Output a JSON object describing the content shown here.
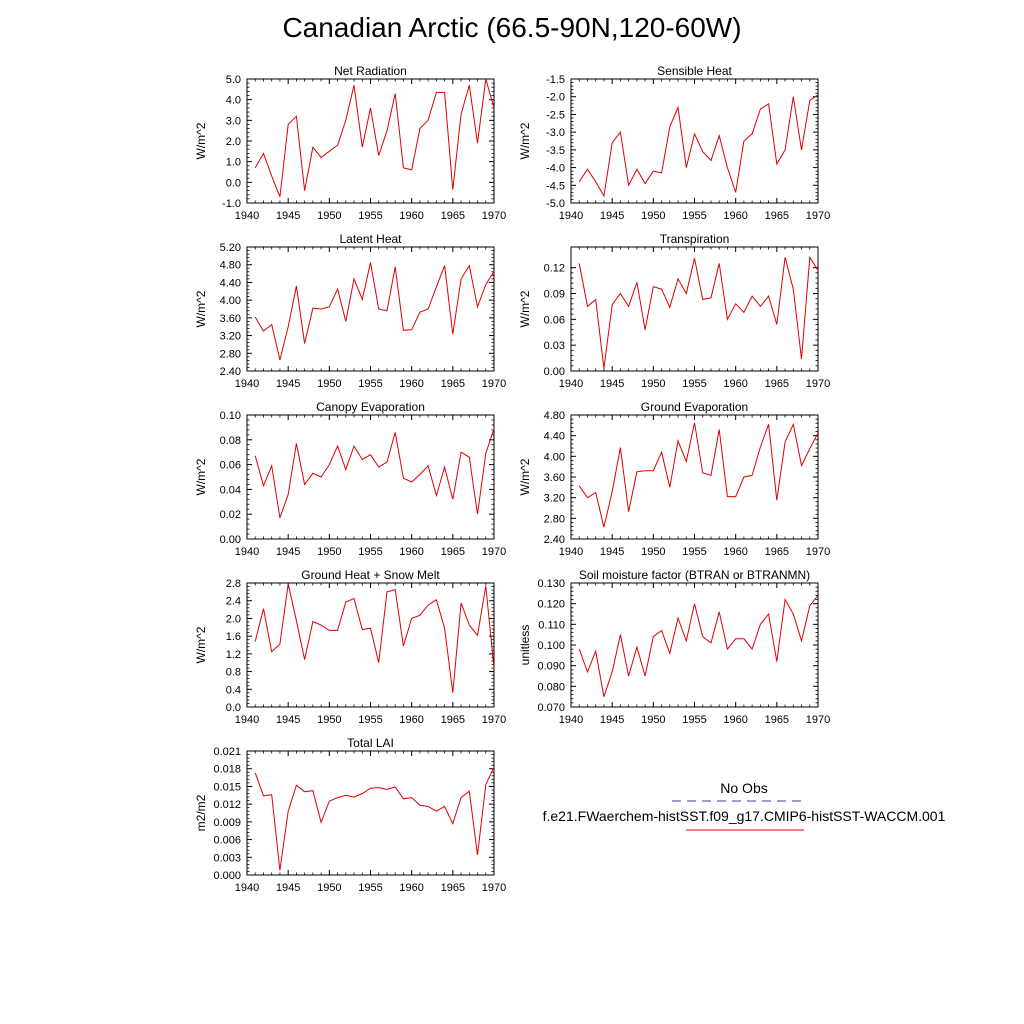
{
  "title": "Canadian Arctic (66.5-90N,120-60W)",
  "legend": {
    "obs_label": "No Obs",
    "obs_color": "#3b3b9a",
    "case_label": "f.e21.FWaerchem-histSST.f09_g17.CMIP6-histSST-WACCM.001",
    "case_color": "#e00000"
  },
  "chart_data": [
    {
      "type": "line",
      "title": "Net Radiation",
      "ylabel": "W/m^2",
      "xlim": [
        1940,
        1970
      ],
      "xticks": [
        1940,
        1945,
        1950,
        1955,
        1960,
        1965,
        1970
      ],
      "ylim": [
        -1.0,
        5.0
      ],
      "yticks": [
        "-1.0",
        "0.0",
        "1.0",
        "2.0",
        "3.0",
        "4.0",
        "5.0"
      ],
      "series": [
        {
          "color": "#e00000",
          "x": [
            1941,
            1942,
            1943,
            1944,
            1945,
            1946,
            1947,
            1948,
            1949,
            1950,
            1951,
            1952,
            1953,
            1954,
            1955,
            1956,
            1957,
            1958,
            1959,
            1960,
            1961,
            1962,
            1963,
            1964,
            1965,
            1966,
            1967,
            1968,
            1969,
            1970
          ],
          "y": [
            0.7,
            1.4,
            0.3,
            -0.7,
            2.8,
            3.2,
            -0.4,
            1.7,
            1.2,
            1.5,
            1.8,
            3.0,
            4.7,
            1.7,
            3.6,
            1.3,
            2.5,
            4.3,
            0.7,
            0.6,
            2.6,
            3.0,
            4.35,
            4.35,
            -0.35,
            3.3,
            4.7,
            1.9,
            5.0,
            3.6
          ]
        }
      ]
    },
    {
      "type": "line",
      "title": "Sensible Heat",
      "ylabel": "W/m^2",
      "xlim": [
        1940,
        1970
      ],
      "xticks": [
        1940,
        1945,
        1950,
        1955,
        1960,
        1965,
        1970
      ],
      "ylim": [
        -5.0,
        -1.5
      ],
      "yticks": [
        "-5.0",
        "-4.5",
        "-4.0",
        "-3.5",
        "-3.0",
        "-2.5",
        "-2.0",
        "-1.5"
      ],
      "series": [
        {
          "color": "#e00000",
          "x": [
            1941,
            1942,
            1943,
            1944,
            1945,
            1946,
            1947,
            1948,
            1949,
            1950,
            1951,
            1952,
            1953,
            1954,
            1955,
            1956,
            1957,
            1958,
            1959,
            1960,
            1961,
            1962,
            1963,
            1964,
            1965,
            1966,
            1967,
            1968,
            1969,
            1970
          ],
          "y": [
            -4.4,
            -4.05,
            -4.4,
            -4.8,
            -3.3,
            -3.0,
            -4.5,
            -4.05,
            -4.45,
            -4.1,
            -4.15,
            -2.85,
            -2.3,
            -4.0,
            -3.05,
            -3.55,
            -3.8,
            -3.1,
            -4.0,
            -4.7,
            -3.25,
            -3.05,
            -2.35,
            -2.2,
            -3.9,
            -3.5,
            -2.0,
            -3.5,
            -2.1,
            -1.95
          ]
        }
      ]
    },
    {
      "type": "line",
      "title": "Latent Heat",
      "ylabel": "W/m^2",
      "xlim": [
        1940,
        1970
      ],
      "xticks": [
        1940,
        1945,
        1950,
        1955,
        1960,
        1965,
        1970
      ],
      "ylim": [
        2.4,
        5.2
      ],
      "yticks": [
        "2.40",
        "2.80",
        "3.20",
        "3.60",
        "4.00",
        "4.40",
        "4.80",
        "5.20"
      ],
      "series": [
        {
          "color": "#e00000",
          "x": [
            1941,
            1942,
            1943,
            1944,
            1945,
            1946,
            1947,
            1948,
            1949,
            1950,
            1951,
            1952,
            1953,
            1954,
            1955,
            1956,
            1957,
            1958,
            1959,
            1960,
            1961,
            1962,
            1963,
            1964,
            1965,
            1966,
            1967,
            1968,
            1969,
            1970
          ],
          "y": [
            3.62,
            3.3,
            3.45,
            2.65,
            3.4,
            4.32,
            3.02,
            3.82,
            3.8,
            3.85,
            4.25,
            3.52,
            4.48,
            4.02,
            4.85,
            3.8,
            3.76,
            4.75,
            3.32,
            3.33,
            3.73,
            3.8,
            4.3,
            4.78,
            3.23,
            4.48,
            4.78,
            3.85,
            4.35,
            4.65
          ]
        }
      ]
    },
    {
      "type": "line",
      "title": "Transpiration",
      "ylabel": "W/m^2",
      "xlim": [
        1940,
        1970
      ],
      "xticks": [
        1940,
        1945,
        1950,
        1955,
        1960,
        1965,
        1970
      ],
      "ylim": [
        0.0,
        0.144
      ],
      "yticks": [
        "0.00",
        "0.03",
        "0.06",
        "0.09",
        "0.12"
      ],
      "ytick_values": [
        0.0,
        0.03,
        0.06,
        0.09,
        0.12
      ],
      "series": [
        {
          "color": "#e00000",
          "x": [
            1941,
            1942,
            1943,
            1944,
            1945,
            1946,
            1947,
            1948,
            1949,
            1950,
            1951,
            1952,
            1953,
            1954,
            1955,
            1956,
            1957,
            1958,
            1959,
            1960,
            1961,
            1962,
            1963,
            1964,
            1965,
            1966,
            1967,
            1968,
            1969,
            1970
          ],
          "y": [
            0.125,
            0.075,
            0.083,
            0.003,
            0.077,
            0.09,
            0.075,
            0.103,
            0.048,
            0.098,
            0.095,
            0.074,
            0.107,
            0.09,
            0.131,
            0.083,
            0.085,
            0.125,
            0.06,
            0.078,
            0.068,
            0.087,
            0.075,
            0.087,
            0.054,
            0.132,
            0.095,
            0.014,
            0.132,
            0.117
          ]
        }
      ]
    },
    {
      "type": "line",
      "title": "Canopy Evaporation",
      "ylabel": "W/m^2",
      "xlim": [
        1940,
        1970
      ],
      "xticks": [
        1940,
        1945,
        1950,
        1955,
        1960,
        1965,
        1970
      ],
      "ylim": [
        0.0,
        0.1
      ],
      "yticks": [
        "0.00",
        "0.02",
        "0.04",
        "0.06",
        "0.08",
        "0.10"
      ],
      "series": [
        {
          "color": "#e00000",
          "x": [
            1941,
            1942,
            1943,
            1944,
            1945,
            1946,
            1947,
            1948,
            1949,
            1950,
            1951,
            1952,
            1953,
            1954,
            1955,
            1956,
            1957,
            1958,
            1959,
            1960,
            1961,
            1962,
            1963,
            1964,
            1965,
            1966,
            1967,
            1968,
            1969,
            1970
          ],
          "y": [
            0.067,
            0.043,
            0.059,
            0.017,
            0.036,
            0.077,
            0.044,
            0.053,
            0.05,
            0.06,
            0.075,
            0.056,
            0.075,
            0.064,
            0.068,
            0.058,
            0.062,
            0.086,
            0.049,
            0.046,
            0.052,
            0.059,
            0.035,
            0.058,
            0.032,
            0.07,
            0.066,
            0.02,
            0.069,
            0.089
          ]
        }
      ]
    },
    {
      "type": "line",
      "title": "Ground Evaporation",
      "ylabel": "W/m^2",
      "xlim": [
        1940,
        1970
      ],
      "xticks": [
        1940,
        1945,
        1950,
        1955,
        1960,
        1965,
        1970
      ],
      "ylim": [
        2.4,
        4.8
      ],
      "yticks": [
        "2.40",
        "2.80",
        "3.20",
        "3.60",
        "4.00",
        "4.40",
        "4.80"
      ],
      "series": [
        {
          "color": "#e00000",
          "x": [
            1941,
            1942,
            1943,
            1944,
            1945,
            1946,
            1947,
            1948,
            1949,
            1950,
            1951,
            1952,
            1953,
            1954,
            1955,
            1956,
            1957,
            1958,
            1959,
            1960,
            1961,
            1962,
            1963,
            1964,
            1965,
            1966,
            1967,
            1968,
            1969,
            1970
          ],
          "y": [
            3.43,
            3.2,
            3.3,
            2.63,
            3.32,
            4.17,
            2.93,
            3.7,
            3.72,
            3.72,
            4.08,
            3.4,
            4.3,
            3.9,
            4.65,
            3.68,
            3.63,
            4.52,
            3.22,
            3.22,
            3.6,
            3.63,
            4.18,
            4.62,
            3.15,
            4.28,
            4.62,
            3.82,
            4.15,
            4.45
          ]
        }
      ]
    },
    {
      "type": "line",
      "title": "Ground Heat + Snow Melt",
      "ylabel": "W/m^2",
      "xlim": [
        1940,
        1970
      ],
      "xticks": [
        1940,
        1945,
        1950,
        1955,
        1960,
        1965,
        1970
      ],
      "ylim": [
        0.0,
        2.8
      ],
      "yticks": [
        "0.0",
        "0.4",
        "0.8",
        "1.2",
        "1.6",
        "2.0",
        "2.4",
        "2.8"
      ],
      "series": [
        {
          "color": "#e00000",
          "x": [
            1941,
            1942,
            1943,
            1944,
            1945,
            1946,
            1947,
            1948,
            1949,
            1950,
            1951,
            1952,
            1953,
            1954,
            1955,
            1956,
            1957,
            1958,
            1959,
            1960,
            1961,
            1962,
            1963,
            1964,
            1965,
            1966,
            1967,
            1968,
            1969,
            1970
          ],
          "y": [
            1.48,
            2.22,
            1.25,
            1.42,
            2.78,
            1.95,
            1.07,
            1.93,
            1.85,
            1.73,
            1.73,
            2.37,
            2.45,
            1.75,
            1.78,
            1.0,
            2.6,
            2.65,
            1.38,
            2.0,
            2.07,
            2.3,
            2.42,
            1.78,
            0.32,
            2.35,
            1.85,
            1.62,
            2.73,
            0.87
          ]
        }
      ]
    },
    {
      "type": "line",
      "title": "Soil moisture factor (BTRAN or BTRANMN)",
      "ylabel": "unitless",
      "xlim": [
        1940,
        1970
      ],
      "xticks": [
        1940,
        1945,
        1950,
        1955,
        1960,
        1965,
        1970
      ],
      "ylim": [
        0.07,
        0.13
      ],
      "yticks": [
        "0.070",
        "0.080",
        "0.090",
        "0.100",
        "0.110",
        "0.120",
        "0.130"
      ],
      "series": [
        {
          "color": "#e00000",
          "x": [
            1941,
            1942,
            1943,
            1944,
            1945,
            1946,
            1947,
            1948,
            1949,
            1950,
            1951,
            1952,
            1953,
            1954,
            1955,
            1956,
            1957,
            1958,
            1959,
            1960,
            1961,
            1962,
            1963,
            1964,
            1965,
            1966,
            1967,
            1968,
            1969,
            1970
          ],
          "y": [
            0.098,
            0.087,
            0.097,
            0.075,
            0.087,
            0.105,
            0.085,
            0.099,
            0.085,
            0.104,
            0.107,
            0.096,
            0.113,
            0.102,
            0.12,
            0.104,
            0.101,
            0.116,
            0.098,
            0.103,
            0.103,
            0.098,
            0.11,
            0.115,
            0.092,
            0.122,
            0.115,
            0.102,
            0.119,
            0.124
          ]
        }
      ]
    },
    {
      "type": "line",
      "title": "Total LAI",
      "ylabel": "m2/m2",
      "xlim": [
        1940,
        1970
      ],
      "xticks": [
        1940,
        1945,
        1950,
        1955,
        1960,
        1965,
        1970
      ],
      "ylim": [
        0.0,
        0.021
      ],
      "yticks": [
        "0.000",
        "0.003",
        "0.006",
        "0.009",
        "0.012",
        "0.015",
        "0.018",
        "0.021"
      ],
      "series": [
        {
          "color": "#e00000",
          "x": [
            1941,
            1942,
            1943,
            1944,
            1945,
            1946,
            1947,
            1948,
            1949,
            1950,
            1951,
            1952,
            1953,
            1954,
            1955,
            1956,
            1957,
            1958,
            1959,
            1960,
            1961,
            1962,
            1963,
            1964,
            1965,
            1966,
            1967,
            1968,
            1969,
            1970
          ],
          "y": [
            0.0173,
            0.0134,
            0.0136,
            0.0008,
            0.0108,
            0.0152,
            0.0141,
            0.0143,
            0.0089,
            0.0125,
            0.0131,
            0.0135,
            0.0132,
            0.0138,
            0.0147,
            0.0148,
            0.0145,
            0.0149,
            0.0129,
            0.0131,
            0.0118,
            0.0116,
            0.0108,
            0.0116,
            0.0087,
            0.0131,
            0.0142,
            0.0034,
            0.0153,
            0.0183
          ]
        }
      ]
    }
  ]
}
